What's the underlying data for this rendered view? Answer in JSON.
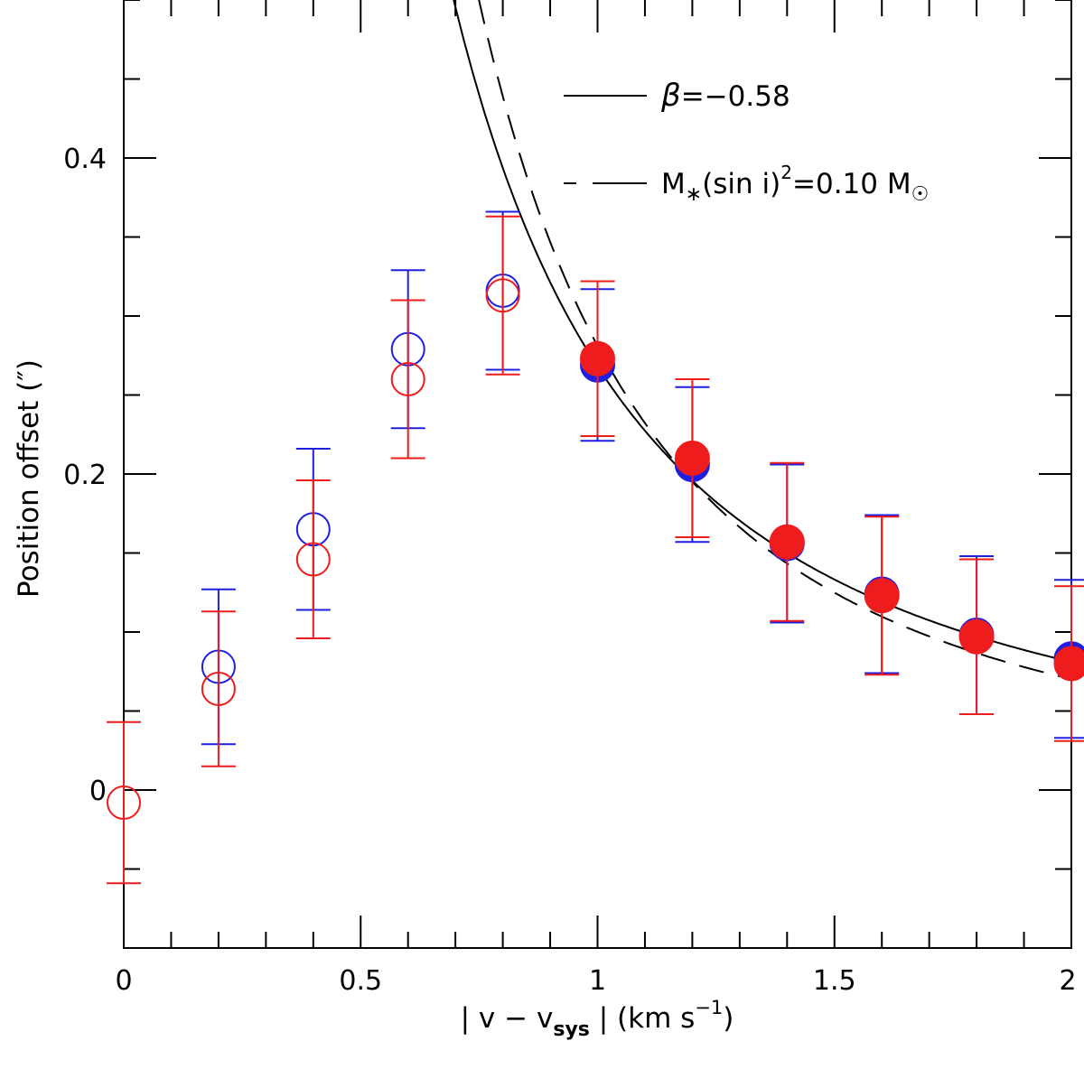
{
  "chart_data": {
    "type": "scatter",
    "title": "",
    "xlabel_parts": {
      "bar_left": "|",
      "v": "v",
      "minus": "−",
      "v2": "v",
      "sub": "sys",
      "bar_right": "|",
      "unit_open": "(km s",
      "sup": "−1",
      "unit_close": ")"
    },
    "ylabel": "Position offset (″)",
    "xlim": [
      0,
      2
    ],
    "ylim": [
      -0.1,
      0.5
    ],
    "x_ticks": [
      {
        "value": 0,
        "label": "0"
      },
      {
        "value": 0.5,
        "label": "0.5"
      },
      {
        "value": 1,
        "label": "1"
      },
      {
        "value": 1.5,
        "label": "1.5"
      },
      {
        "value": 2,
        "label": "2"
      }
    ],
    "y_ticks": [
      {
        "value": 0,
        "label": "0"
      },
      {
        "value": 0.2,
        "label": "0.2"
      },
      {
        "value": 0.4,
        "label": "0.4"
      }
    ],
    "x_minor_step": 0.1,
    "y_minor_step": 0.05,
    "colors": {
      "blue": "#1f1fe0",
      "red": "#ee1c1c",
      "axis": "#000000"
    },
    "series": [
      {
        "name": "blue-open",
        "color": "blue",
        "marker": "open-circle",
        "points": [
          {
            "x": 0.2,
            "y": 0.078,
            "err": 0.049
          },
          {
            "x": 0.4,
            "y": 0.165,
            "err": 0.051
          },
          {
            "x": 0.6,
            "y": 0.279,
            "err": 0.05
          },
          {
            "x": 0.8,
            "y": 0.316,
            "err": 0.05
          }
        ]
      },
      {
        "name": "red-open",
        "color": "red",
        "marker": "open-circle",
        "points": [
          {
            "x": 0.0,
            "y": -0.008,
            "err": 0.051
          },
          {
            "x": 0.2,
            "y": 0.064,
            "err": 0.049
          },
          {
            "x": 0.4,
            "y": 0.146,
            "err": 0.05
          },
          {
            "x": 0.6,
            "y": 0.26,
            "err": 0.05
          },
          {
            "x": 0.8,
            "y": 0.313,
            "err": 0.05
          }
        ]
      },
      {
        "name": "blue-filled",
        "color": "blue",
        "marker": "filled-circle",
        "points": [
          {
            "x": 1.0,
            "y": 0.269,
            "err": 0.048
          },
          {
            "x": 1.2,
            "y": 0.206,
            "err": 0.049
          },
          {
            "x": 1.4,
            "y": 0.156,
            "err": 0.05
          },
          {
            "x": 1.6,
            "y": 0.124,
            "err": 0.05
          },
          {
            "x": 1.8,
            "y": 0.098,
            "err": 0.05
          },
          {
            "x": 2.0,
            "y": 0.083,
            "err": 0.05
          }
        ]
      },
      {
        "name": "red-filled",
        "color": "red",
        "marker": "filled-circle",
        "points": [
          {
            "x": 1.0,
            "y": 0.273,
            "err": 0.049
          },
          {
            "x": 1.2,
            "y": 0.21,
            "err": 0.05
          },
          {
            "x": 1.4,
            "y": 0.157,
            "err": 0.05
          },
          {
            "x": 1.6,
            "y": 0.123,
            "err": 0.05
          },
          {
            "x": 1.8,
            "y": 0.097,
            "err": 0.049
          },
          {
            "x": 2.0,
            "y": 0.08,
            "err": 0.049
          }
        ]
      }
    ],
    "curves": [
      {
        "name": "beta-fit",
        "style": "solid",
        "model": "power-law",
        "coefficient": 0.268,
        "exponent": -1.724,
        "x_from": 0.5,
        "x_to": 2.0
      },
      {
        "name": "keplerian-fit",
        "style": "dashed",
        "model": "power-law",
        "coefficient": 0.281,
        "exponent": -2.0,
        "x_from": 0.5,
        "x_to": 2.0
      }
    ],
    "legend": {
      "position": "top-right",
      "entries": [
        {
          "style": "solid",
          "symbol": "β",
          "text": "=−0.58"
        },
        {
          "style": "dashed",
          "m": "M",
          "m_sub": "∗",
          "mid": "(sin i)",
          "sup": "2",
          "value": "=0.10 M",
          "sun_symbol": "☉"
        }
      ]
    }
  }
}
